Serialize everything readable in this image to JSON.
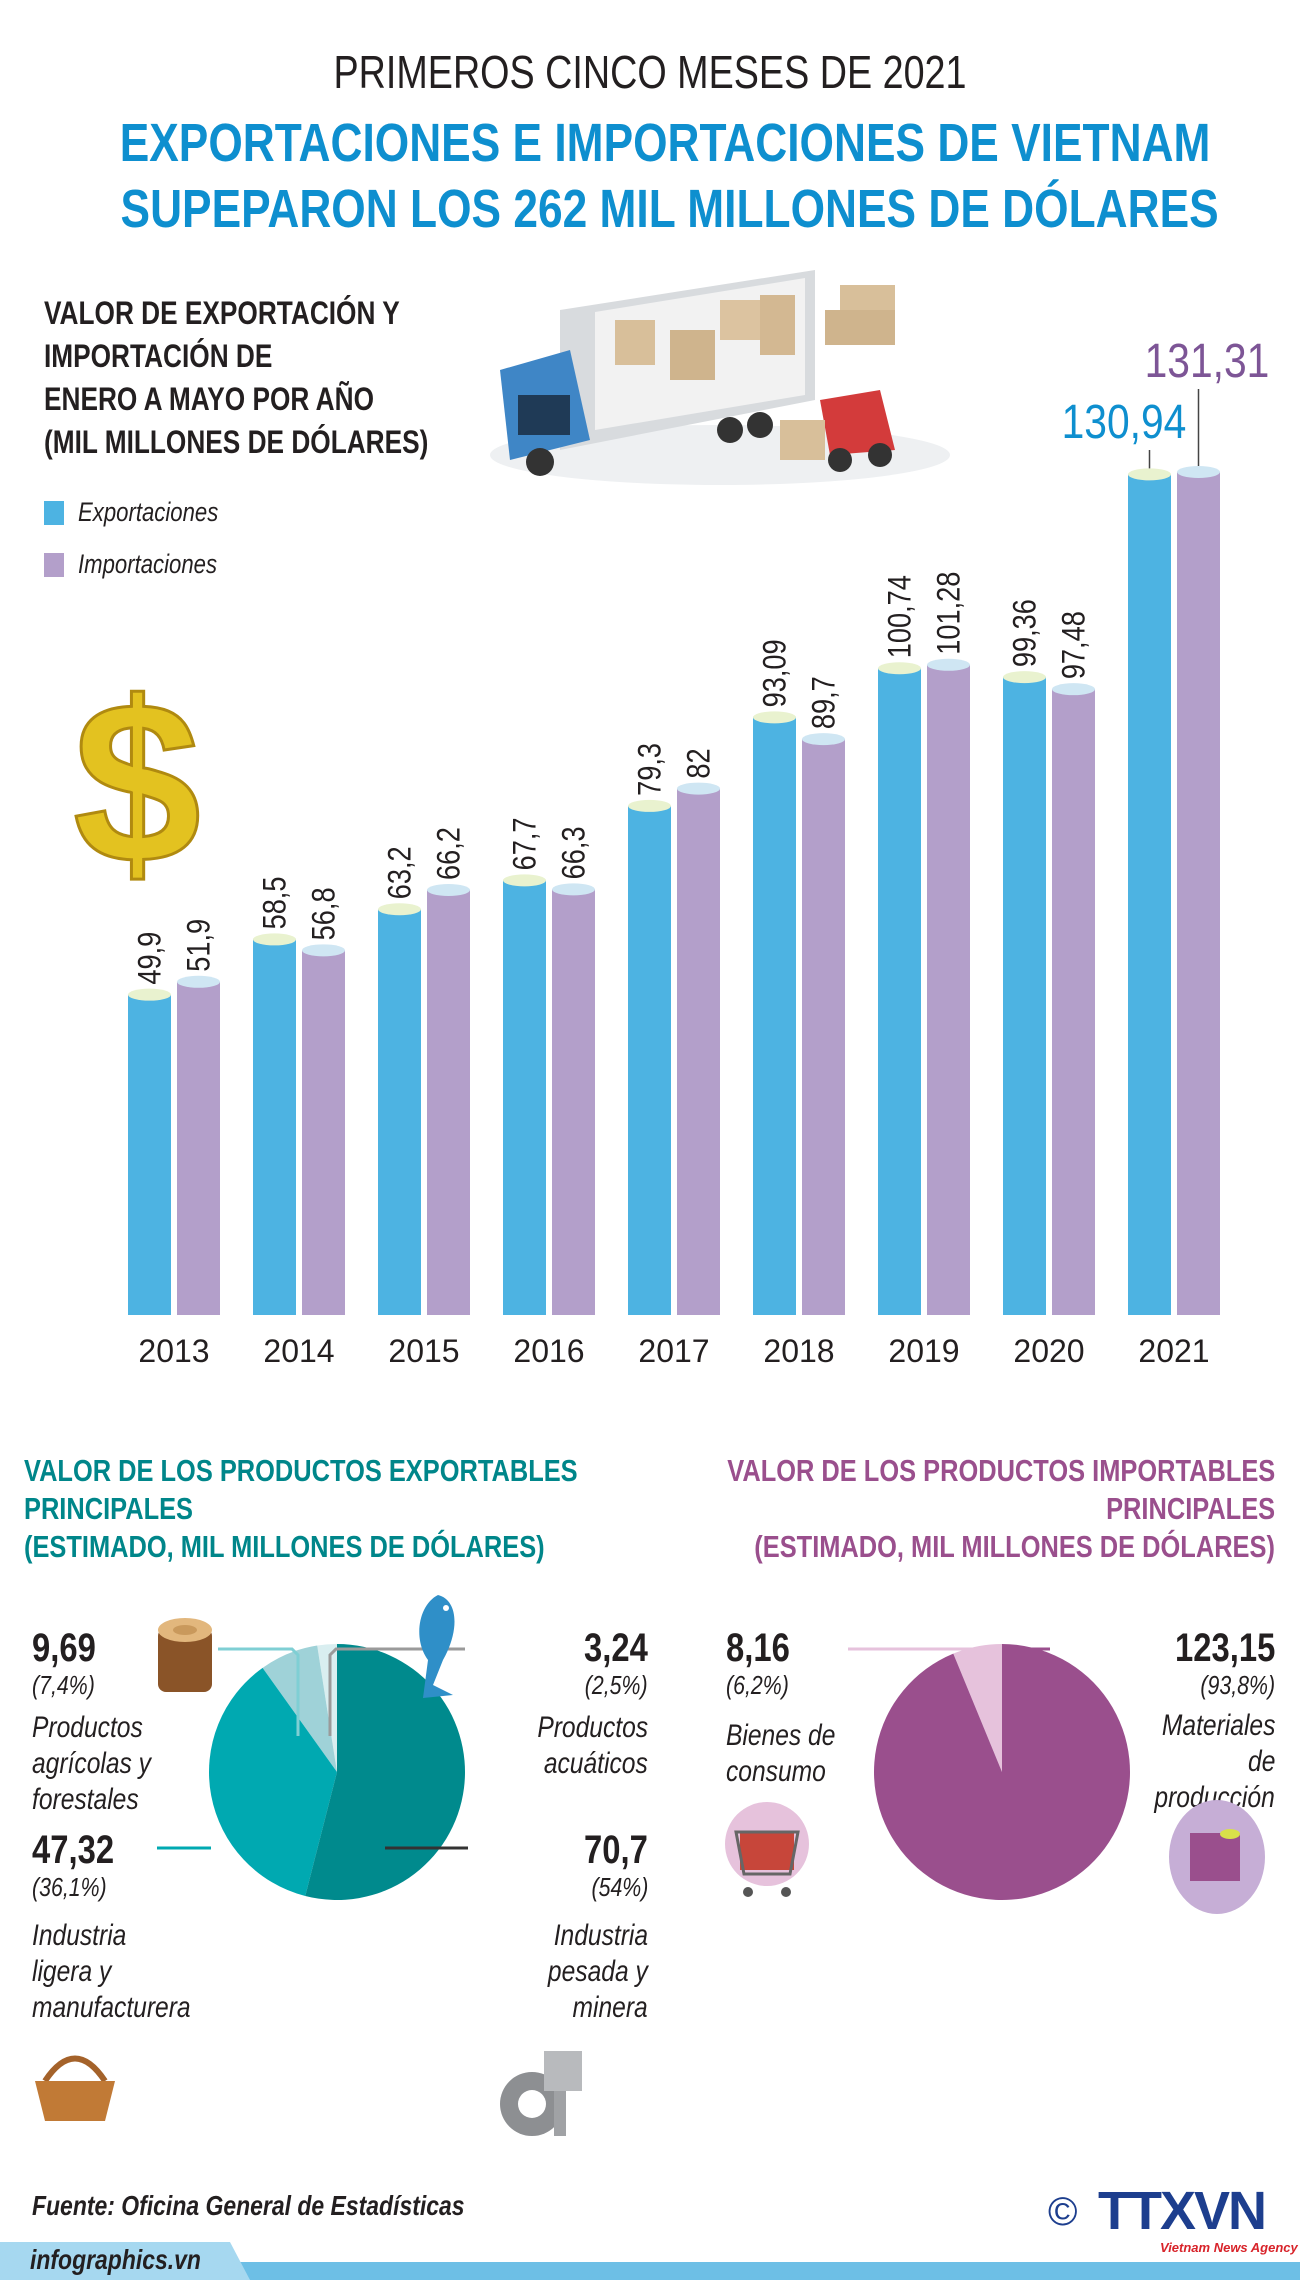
{
  "header": {
    "kicker": "PRIMEROS CINCO MESES DE 2021",
    "title_line1": "EXPORTACIONES E IMPORTACIONES DE VIETNAM",
    "title_line2": "SUPEPARON LOS 262 MIL MILLONES DE DÓLARES"
  },
  "chart_title": [
    "VALOR DE EXPORTACIÓN Y",
    "IMPORTACIÓN DE",
    "ENERO A MAYO POR AÑO",
    "(MIL MILLONES DE DÓLARES)"
  ],
  "legend": [
    {
      "label": "Exportaciones",
      "color": "#4db3e2"
    },
    {
      "label": "Importaciones",
      "color": "#b39fca"
    }
  ],
  "chart_data": [
    {
      "type": "bar",
      "categories": [
        "2013",
        "2014",
        "2015",
        "2016",
        "2017",
        "2018",
        "2019",
        "2020",
        "2021"
      ],
      "series": [
        {
          "name": "Exportaciones",
          "color": "#4db3e2",
          "values": [
            49.9,
            58.5,
            63.2,
            67.7,
            79.3,
            93.09,
            100.74,
            99.36,
            130.94
          ],
          "labels": [
            "49,9",
            "58,5",
            "63,2",
            "67,7",
            "79,3",
            "93,09",
            "100,74",
            "99,36",
            "130,94"
          ]
        },
        {
          "name": "Importaciones",
          "color": "#b39fca",
          "values": [
            51.9,
            56.8,
            66.2,
            66.3,
            82,
            89.7,
            101.28,
            97.48,
            131.31
          ],
          "labels": [
            "51,9",
            "56,8",
            "66,2",
            "66,3",
            "82",
            "89,7",
            "101,28",
            "97,48",
            "131,31"
          ]
        }
      ],
      "ylim": [
        0,
        131.31
      ],
      "grid": false,
      "legend_placement": "top-left"
    },
    {
      "type": "pie",
      "title": [
        "VALOR DE LOS PRODUCTOS EXPORTABLES",
        "PRINCIPALES",
        "(ESTIMADO, MIL MILLONES DE DÓLARES)"
      ],
      "slices": [
        {
          "value": 70.7,
          "value_label": "70,7",
          "pct": "(54%)",
          "label": [
            "Industria",
            "pesada y",
            "minera"
          ],
          "color": "#008a8d"
        },
        {
          "value": 47.32,
          "value_label": "47,32",
          "pct": "(36,1%)",
          "label": [
            "Industria",
            "ligera y",
            "manufacturera"
          ],
          "color": "#00a9b1"
        },
        {
          "value": 9.69,
          "value_label": "9,69",
          "pct": "(7,4%)",
          "label": [
            "Productos",
            "agrícolas y",
            "forestales"
          ],
          "color": "#9fd2d8"
        },
        {
          "value": 3.24,
          "value_label": "3,24",
          "pct": "(2,5%)",
          "label": [
            "Productos",
            "acuáticos"
          ],
          "color": "#d9eef0"
        }
      ]
    },
    {
      "type": "pie",
      "title": [
        "VALOR DE LOS PRODUCTOS IMPORTABLES",
        "PRINCIPALES",
        "(ESTIMADO, MIL MILLONES DE DÓLARES)"
      ],
      "slices": [
        {
          "value": 123.15,
          "value_label": "123,15",
          "pct": "(93,8%)",
          "label": [
            "Materiales",
            "de",
            "producción"
          ],
          "color": "#9a4f8d"
        },
        {
          "value": 8.16,
          "value_label": "8,16",
          "pct": "(6,2%)",
          "label": [
            "Bienes de",
            "consumo"
          ],
          "color": "#e6c2dc"
        }
      ]
    }
  ],
  "colors": {
    "title_blue": "#0e8fcf",
    "export_heading": "#00868a",
    "import_heading": "#9a4f8d"
  },
  "footer": {
    "source": "Fuente: Oficina General de Estadísticas",
    "site": "infographics.vn",
    "logo": "TTXVN",
    "logo_sub": "Vietnam News Agency",
    "copyright": "©"
  }
}
